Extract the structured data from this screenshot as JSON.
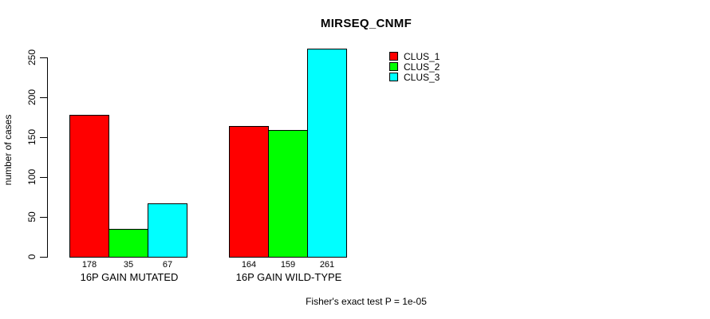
{
  "chart_data": {
    "type": "bar",
    "title": "MIRSEQ_CNMF",
    "ylabel": "number of cases",
    "xlabel": "",
    "footnote": "Fisher's exact test P = 1e-05",
    "categories": [
      "16P GAIN MUTATED",
      "16P GAIN WILD-TYPE"
    ],
    "series": [
      {
        "name": "CLUS_1",
        "color": "#ff0000",
        "values": [
          178,
          164
        ]
      },
      {
        "name": "CLUS_2",
        "color": "#00ff00",
        "values": [
          35,
          159
        ]
      },
      {
        "name": "CLUS_3",
        "color": "#00ffff",
        "values": [
          67,
          261
        ]
      }
    ],
    "yticks": [
      0,
      50,
      100,
      150,
      200,
      250
    ],
    "ylim": [
      0,
      265
    ],
    "grid": false,
    "bar_value_labels_shown": true,
    "bar_border_color": "#000000",
    "legend": {
      "position": "top-right",
      "entries": [
        "CLUS_1",
        "CLUS_2",
        "CLUS_3"
      ]
    }
  }
}
